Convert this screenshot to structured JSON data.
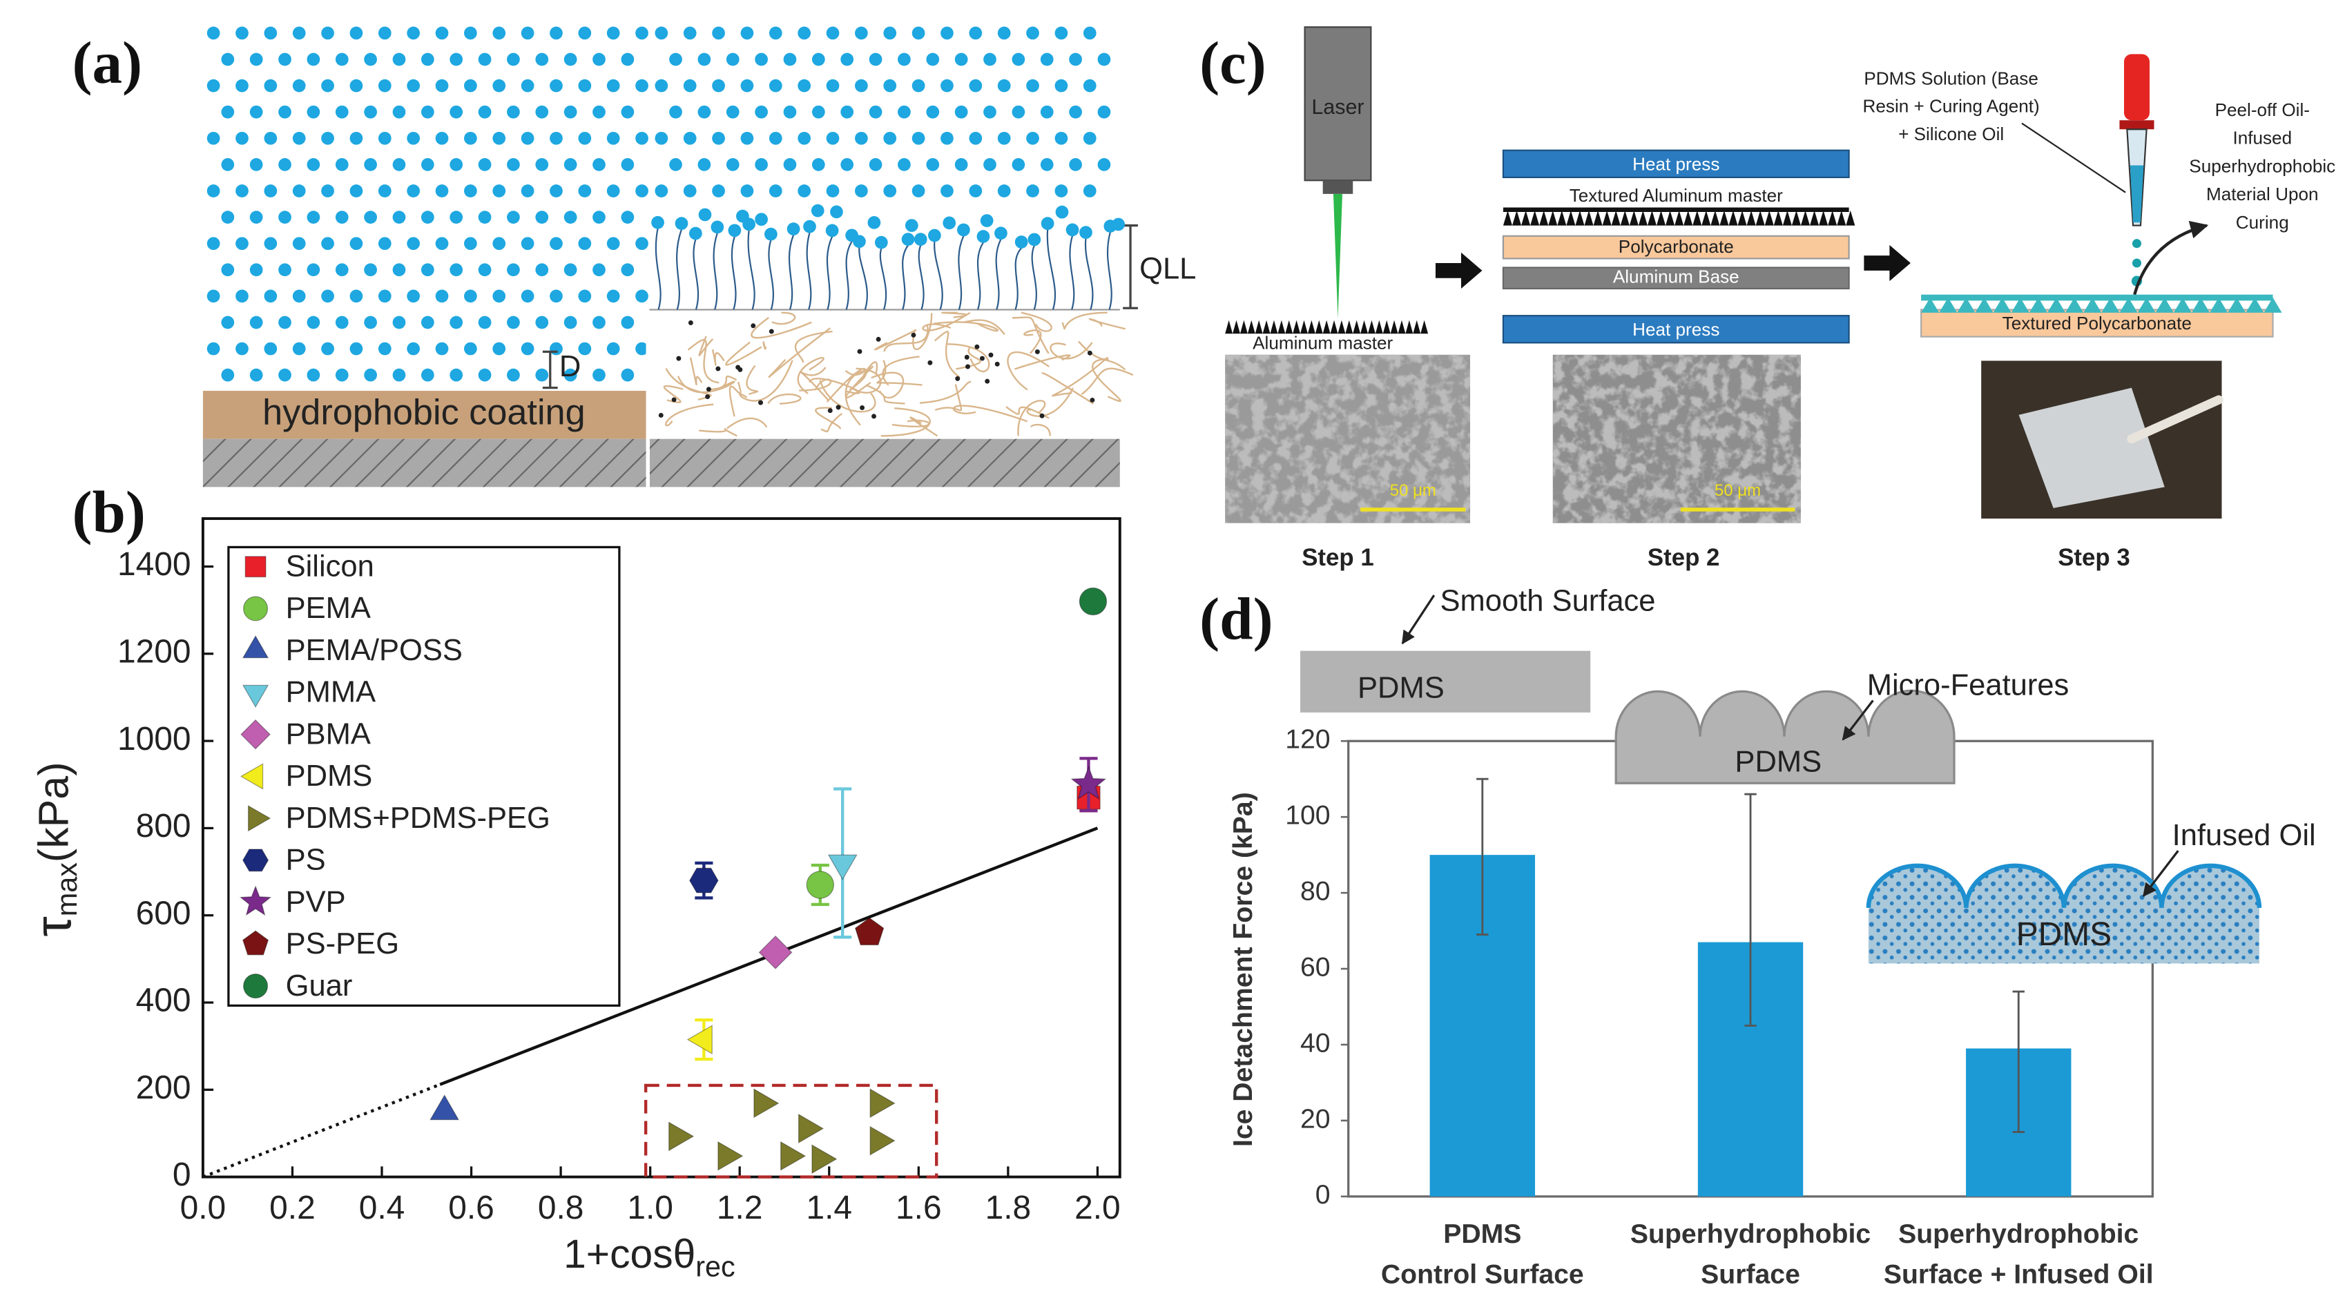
{
  "panels": {
    "a": "(a)",
    "b": "(b)",
    "c": "(c)",
    "d": "(d)"
  },
  "diagram_a": {
    "coating": "hydrophobic coating",
    "gap": "D",
    "layer": "QLL"
  },
  "diagram_c": {
    "laser": "Laser",
    "master": "Aluminum master",
    "heat_press_top": "Heat press",
    "textured_master": "Textured Aluminum master",
    "polycarbonate": "Polycarbonate",
    "aluminum_base": "Aluminum Base",
    "heat_press_bottom": "Heat press",
    "solution": [
      "PDMS Solution (Base",
      "Resin + Curing Agent)",
      "+ Silicone Oil"
    ],
    "peel": [
      "Peel-off Oil-",
      "Infused",
      "Superhydrophobic",
      "Material Upon",
      "Curing"
    ],
    "textured_pc": "Textured Polycarbonate",
    "scale_1": "50 μm",
    "scale_2": "50 μm",
    "steps": [
      "Step 1",
      "Step 2",
      "Step 3"
    ]
  },
  "insets_d": {
    "smooth": "Smooth Surface",
    "pdms_1": "PDMS",
    "micro": "Micro-Features",
    "pdms_2": "PDMS",
    "oil": "Infused Oil",
    "pdms_3": "PDMS"
  },
  "chart_data": [
    {
      "type": "scatter",
      "xlabel": "1+cosθ",
      "xlabel_sub": "rec",
      "ylabel": "τ",
      "ylabel_sub": "max",
      "ylabel_unit": "(kPa)",
      "xlim": [
        0,
        2.05
      ],
      "ylim": [
        0,
        1510
      ],
      "xticks": [
        {
          "value": 0,
          "label": "0.0"
        },
        {
          "value": 0.2,
          "label": "0.2"
        },
        {
          "value": 0.4,
          "label": "0.4"
        },
        {
          "value": 0.6,
          "label": "0.6"
        },
        {
          "value": 0.8,
          "label": "0.8"
        },
        {
          "value": 1,
          "label": "1.0"
        },
        {
          "value": 1.2,
          "label": "1.2"
        },
        {
          "value": 1.4,
          "label": "1.4"
        },
        {
          "value": 1.6,
          "label": "1.6"
        },
        {
          "value": 1.8,
          "label": "1.8"
        },
        {
          "value": 2,
          "label": "2.0"
        }
      ],
      "yticks": [
        0,
        200,
        400,
        600,
        800,
        1000,
        1200,
        1400
      ],
      "legend": "upper left",
      "series": [
        {
          "name": "Silicon",
          "color": "#e8202a",
          "marker": "square",
          "x": [
            1.98
          ],
          "y": [
            870
          ],
          "errors": [
            30
          ]
        },
        {
          "name": "PEMA",
          "color": "#78c444",
          "marker": "circle",
          "x": [
            1.38
          ],
          "y": [
            670
          ],
          "errors": [
            45
          ]
        },
        {
          "name": "PEMA/POSS",
          "color": "#3452a8",
          "marker": "triangle-up",
          "x": [
            0.54
          ],
          "y": [
            150
          ]
        },
        {
          "name": "PMMA",
          "color": "#6ac8dc",
          "marker": "triangle-down",
          "x": [
            1.43
          ],
          "y": [
            720
          ],
          "errors": [
            170
          ]
        },
        {
          "name": "PBMA",
          "color": "#c05fb0",
          "marker": "diamond",
          "x": [
            1.28
          ],
          "y": [
            515
          ]
        },
        {
          "name": "PDMS",
          "color": "#f2ec1c",
          "marker": "triangle-left",
          "x": [
            1.12
          ],
          "y": [
            315
          ],
          "errors": [
            45
          ]
        },
        {
          "name": "PDMS+PDMS-PEG",
          "color": "#7a7a2a",
          "marker": "triangle-right",
          "x": [
            1.06,
            1.17,
            1.25,
            1.31,
            1.35,
            1.38,
            1.51,
            1.51
          ],
          "y": [
            93,
            48,
            169,
            48,
            111,
            41,
            169,
            83
          ]
        },
        {
          "name": "PS",
          "color": "#1c2a7c",
          "marker": "hexagon",
          "x": [
            1.12
          ],
          "y": [
            680
          ],
          "errors": [
            40
          ]
        },
        {
          "name": "PVP",
          "color": "#7a2a8a",
          "marker": "star",
          "x": [
            1.98
          ],
          "y": [
            900
          ],
          "errors": [
            60
          ]
        },
        {
          "name": "PS-PEG",
          "color": "#7a1414",
          "marker": "pentagon",
          "x": [
            1.49
          ],
          "y": [
            560
          ]
        },
        {
          "name": "Guar",
          "color": "#1e7a3c",
          "marker": "circle",
          "x": [
            1.99
          ],
          "y": [
            1320
          ]
        }
      ],
      "fit_dotted": {
        "x": [
          0,
          0.53
        ],
        "y": [
          0,
          212
        ]
      },
      "fit_solid": {
        "x": [
          0.53,
          2.0
        ],
        "y": [
          212,
          800
        ]
      },
      "highlight_box": {
        "x": [
          0.99,
          1.64
        ],
        "y": [
          0,
          210
        ]
      }
    },
    {
      "type": "bar",
      "ylabel": "Ice Detachment Force (kPa)",
      "categories": [
        [
          "PDMS",
          "Control Surface"
        ],
        [
          "Superhydrophobic",
          "Surface"
        ],
        [
          "Superhydrophobic",
          "Surface + Infused Oil"
        ]
      ],
      "values": [
        90,
        67,
        39
      ],
      "error_low": [
        69,
        45,
        17
      ],
      "error_high": [
        110,
        106,
        54
      ],
      "color": "#1b9ad6",
      "ylim": [
        0,
        120
      ],
      "yticks": [
        0,
        20,
        40,
        60,
        80,
        100,
        120
      ]
    }
  ]
}
